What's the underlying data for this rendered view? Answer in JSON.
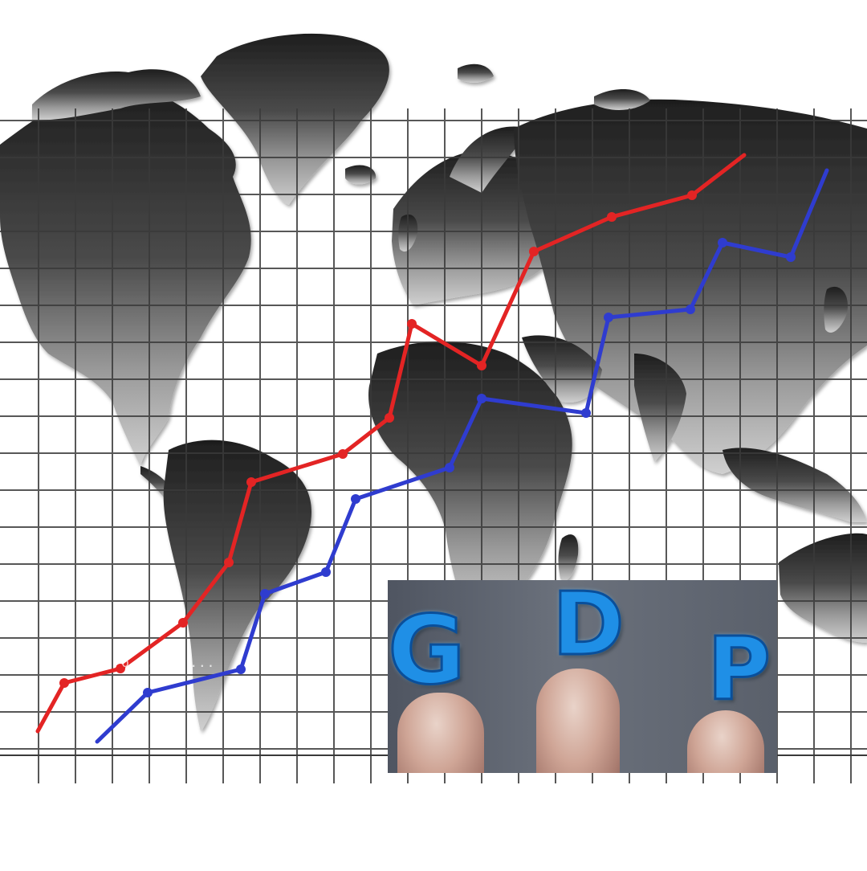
{
  "image": {
    "description_words": [
      "G",
      "D",
      "P"
    ],
    "watermark_text": "pro... ow ..."
  },
  "lines": [
    {
      "name": "red-line",
      "color": "#e32424"
    },
    {
      "name": "blue-line",
      "color": "#2f3ccf"
    }
  ],
  "colors": {
    "map_dark": "#262626",
    "map_light": "#b5b5b5",
    "grid": "#3a3a3a",
    "letters": "#1f8fe6"
  }
}
